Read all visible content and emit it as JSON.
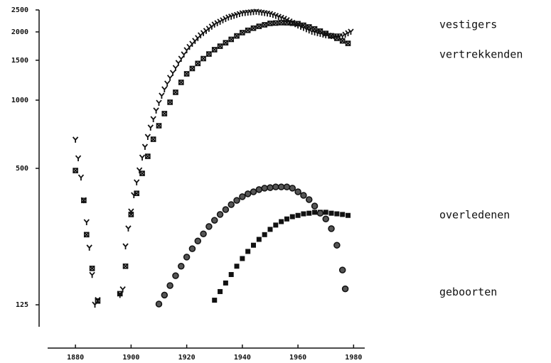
{
  "chart_data": {
    "type": "scatter",
    "log_y": true,
    "grid": false,
    "xlim": [
      1870,
      1984
    ],
    "xticks": [
      1880,
      1900,
      1920,
      1940,
      1960,
      1980
    ],
    "ylim": [
      100,
      2500
    ],
    "yticks": [
      125,
      500,
      1000,
      1500,
      2000,
      2500
    ],
    "series": [
      {
        "name": "vestigers",
        "color": "#111111",
        "marker": "y",
        "x": [
          1880,
          1881,
          1882,
          1883,
          1884,
          1885,
          1886,
          1887,
          1888,
          1896,
          1897,
          1898,
          1899,
          1900,
          1901,
          1902,
          1903,
          1904,
          1905,
          1906,
          1907,
          1908,
          1909,
          1910,
          1911,
          1912,
          1913,
          1914,
          1915,
          1916,
          1917,
          1918,
          1919,
          1920,
          1921,
          1922,
          1923,
          1924,
          1925,
          1926,
          1927,
          1928,
          1929,
          1930,
          1931,
          1932,
          1933,
          1934,
          1935,
          1936,
          1937,
          1938,
          1939,
          1940,
          1941,
          1942,
          1943,
          1944,
          1945,
          1946,
          1947,
          1948,
          1949,
          1950,
          1951,
          1952,
          1953,
          1954,
          1955,
          1956,
          1957,
          1958,
          1959,
          1960,
          1961,
          1962,
          1963,
          1964,
          1965,
          1966,
          1967,
          1968,
          1969,
          1970,
          1971,
          1972,
          1973,
          1974,
          1975,
          1976,
          1977,
          1978,
          1979
        ],
        "values": [
          668,
          553,
          455,
          361,
          289,
          223,
          169,
          125,
          131,
          138,
          146,
          226,
          271,
          322,
          380,
          433,
          489,
          557,
          621,
          687,
          755,
          823,
          898,
          971,
          1044,
          1114,
          1181,
          1252,
          1316,
          1384,
          1456,
          1520,
          1588,
          1658,
          1714,
          1769,
          1822,
          1876,
          1929,
          1973,
          2017,
          2062,
          2106,
          2150,
          2182,
          2214,
          2247,
          2279,
          2311,
          2331,
          2352,
          2372,
          2393,
          2413,
          2420,
          2428,
          2435,
          2443,
          2450,
          2439,
          2428,
          2417,
          2406,
          2395,
          2372,
          2349,
          2326,
          2303,
          2280,
          2250,
          2220,
          2191,
          2161,
          2131,
          2105,
          2079,
          2052,
          2026,
          2000,
          1986,
          1972,
          1957,
          1943,
          1929,
          1923,
          1916,
          1910,
          1910,
          1910,
          1910,
          1940,
          1970,
          2000
        ]
      },
      {
        "name": "vertrekkenden",
        "color": "#111111",
        "marker": "x",
        "x": [
          1880,
          1883,
          1884,
          1886,
          1888,
          1896,
          1898,
          1900,
          1902,
          1904,
          1906,
          1908,
          1910,
          1912,
          1914,
          1916,
          1918,
          1920,
          1922,
          1924,
          1926,
          1928,
          1930,
          1932,
          1934,
          1936,
          1938,
          1940,
          1942,
          1944,
          1946,
          1948,
          1950,
          1952,
          1954,
          1956,
          1958,
          1960,
          1962,
          1964,
          1966,
          1968,
          1970,
          1972,
          1974,
          1976,
          1978
        ],
        "values": [
          489,
          361,
          255,
          181,
          130,
          140,
          185,
          313,
          388,
          475,
          565,
          672,
          771,
          872,
          979,
          1083,
          1198,
          1306,
          1379,
          1452,
          1525,
          1597,
          1670,
          1730,
          1791,
          1854,
          1920,
          1986,
          2032,
          2077,
          2116,
          2149,
          2181,
          2189,
          2196,
          2195,
          2185,
          2175,
          2139,
          2103,
          2062,
          2016,
          1970,
          1922,
          1874,
          1826,
          1780
        ]
      },
      {
        "name": "overledenen",
        "color": "#111111",
        "marker": "square",
        "x": [
          1930,
          1932,
          1934,
          1936,
          1938,
          1940,
          1942,
          1944,
          1946,
          1948,
          1950,
          1952,
          1954,
          1956,
          1958,
          1960,
          1962,
          1964,
          1966,
          1968,
          1970,
          1972,
          1974,
          1976,
          1978
        ],
        "values": [
          131,
          143,
          156,
          170,
          185,
          200,
          215,
          229,
          243,
          255,
          269,
          281,
          291,
          299,
          306,
          310,
          315,
          317,
          320,
          320,
          320,
          317,
          315,
          313,
          310
        ]
      },
      {
        "name": "geboorten",
        "color": "#111111",
        "marker": "circle",
        "x": [
          1910,
          1912,
          1914,
          1916,
          1918,
          1920,
          1922,
          1924,
          1926,
          1928,
          1930,
          1932,
          1934,
          1936,
          1938,
          1940,
          1942,
          1944,
          1946,
          1948,
          1950,
          1952,
          1954,
          1956,
          1958,
          1960,
          1962,
          1964,
          1966,
          1968,
          1970,
          1972,
          1974,
          1976,
          1977
        ],
        "values": [
          126,
          138,
          152,
          168,
          185,
          203,
          221,
          239,
          257,
          277,
          295,
          313,
          329,
          346,
          361,
          375,
          386,
          394,
          403,
          409,
          411,
          414,
          414,
          414,
          409,
          394,
          380,
          364,
          341,
          317,
          299,
          271,
          229,
          178,
          147
        ]
      }
    ]
  }
}
